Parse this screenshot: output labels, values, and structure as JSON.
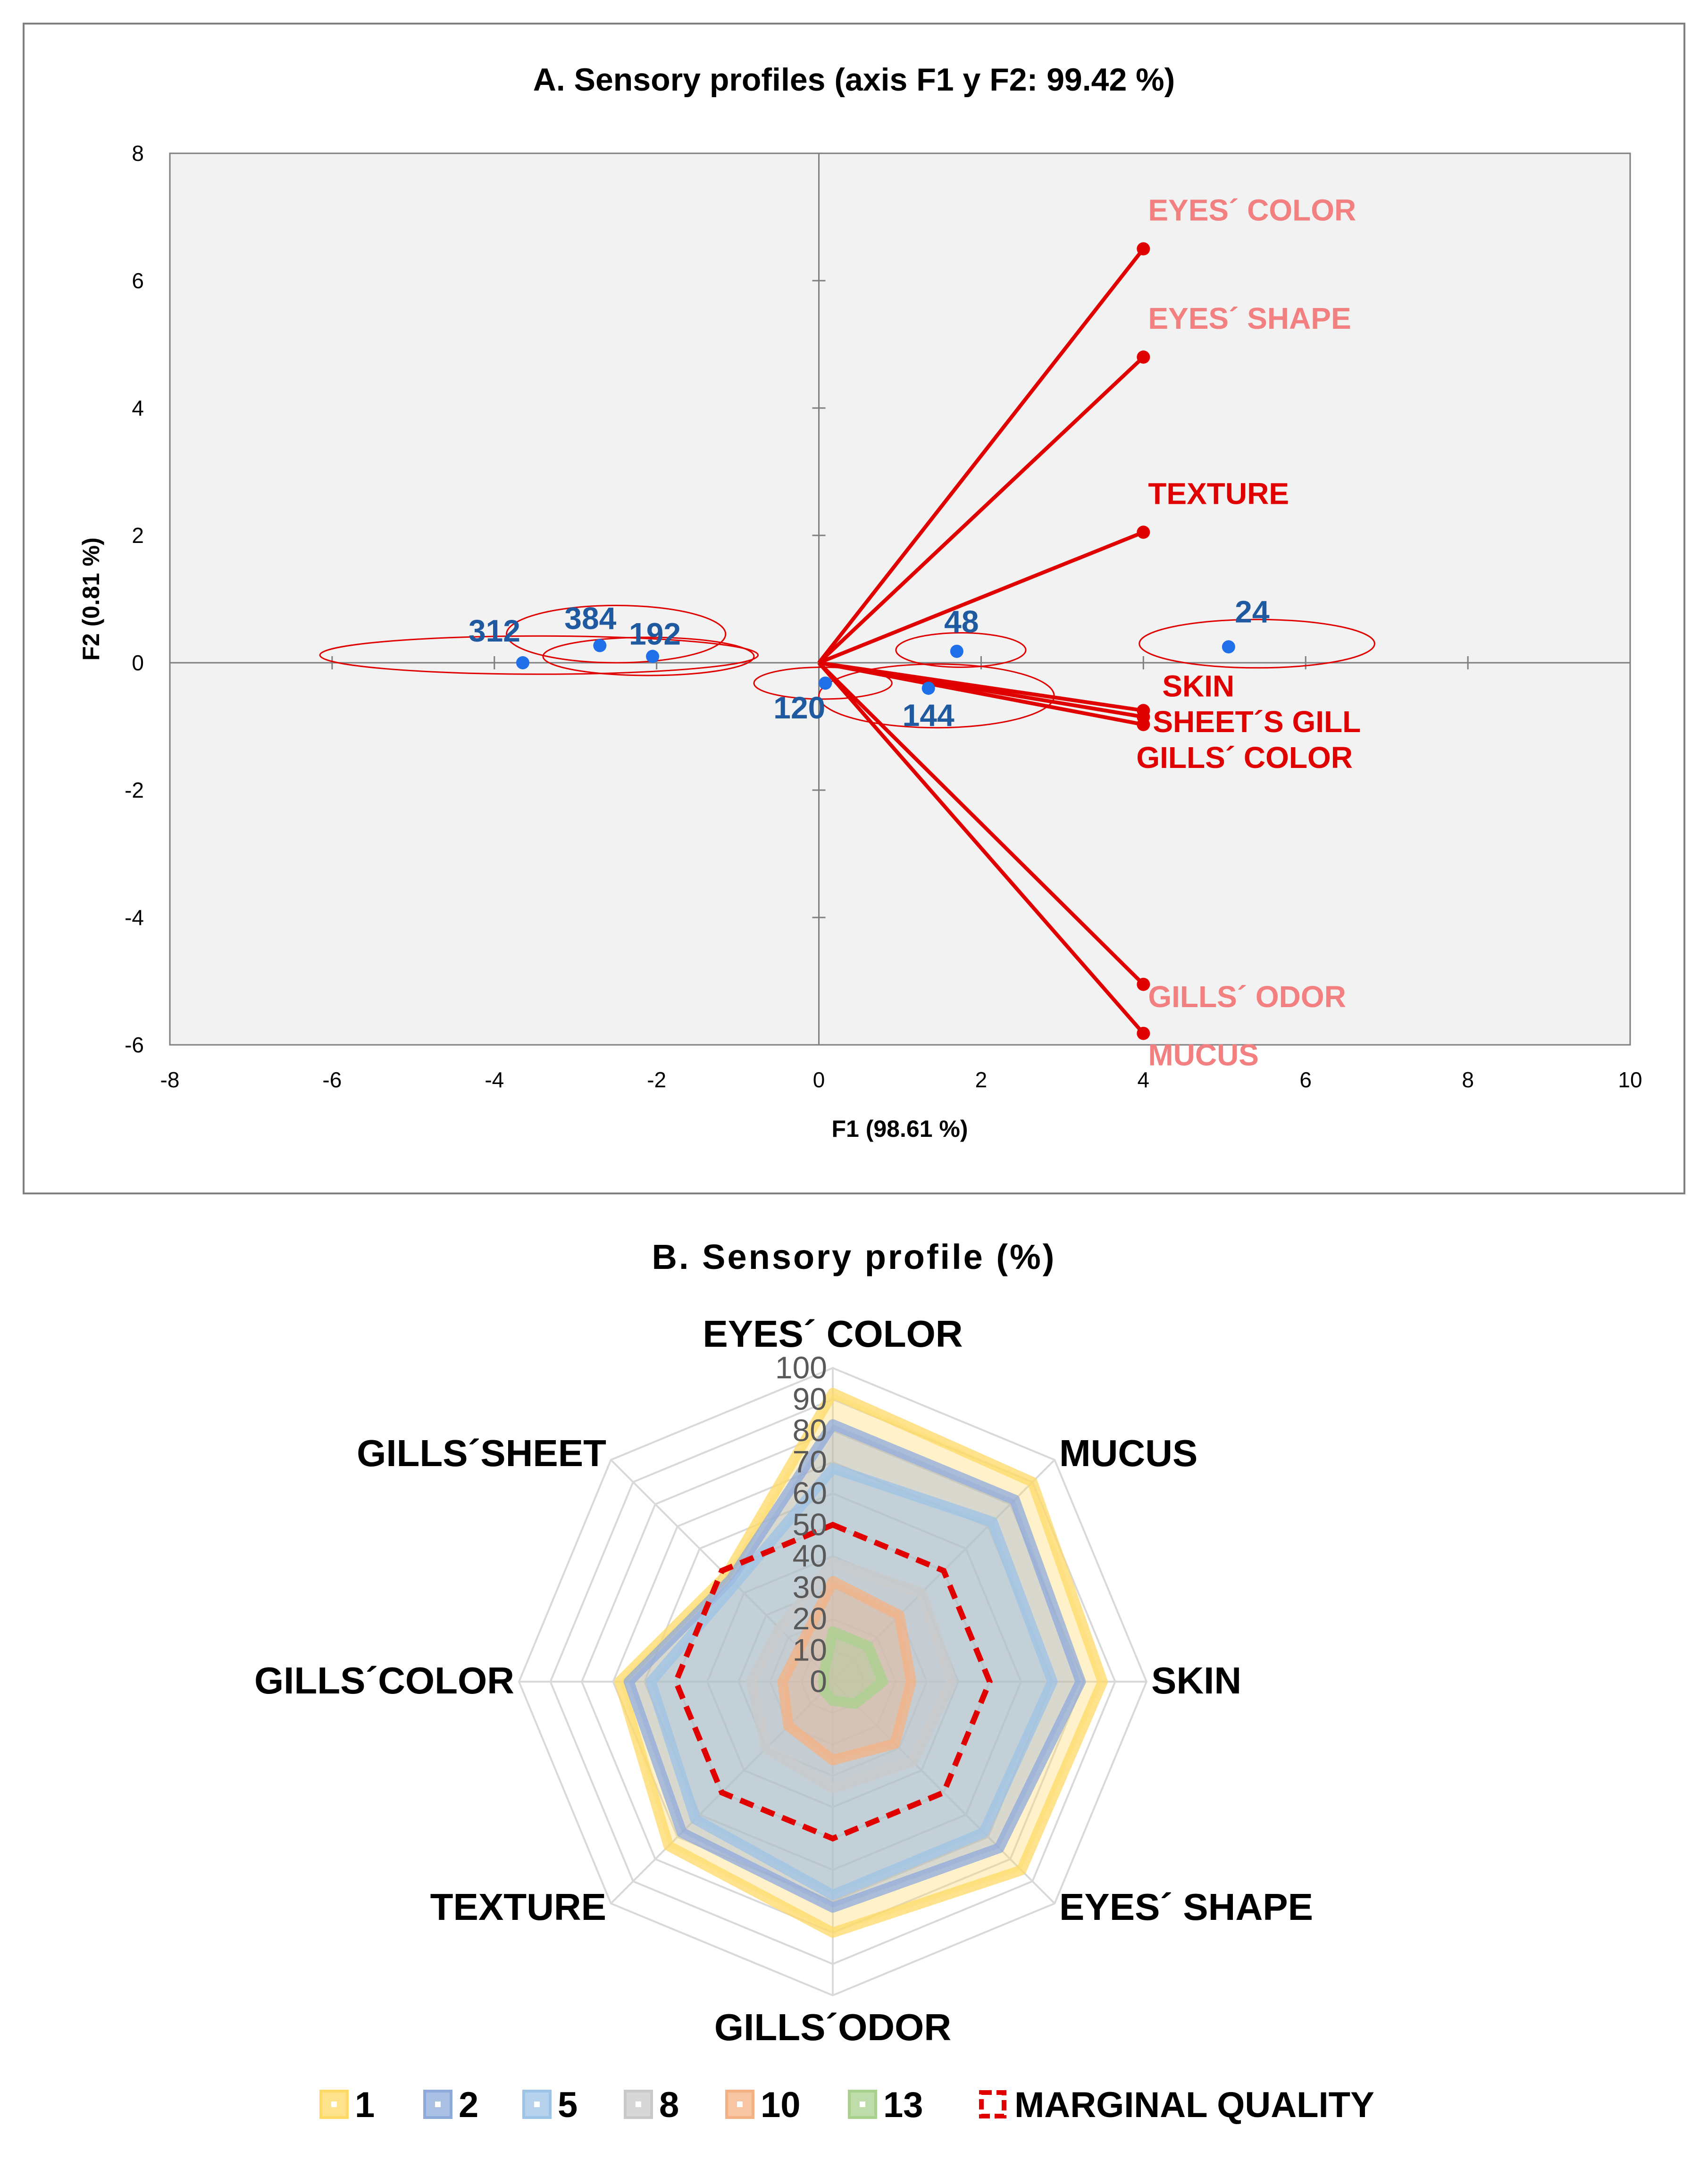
{
  "chart_data": [
    {
      "type": "scatter",
      "title": "A. Sensory profiles (axis F1 y F2: 99.42 %)",
      "xlabel": "F1 (98.61 %)",
      "ylabel": "F2 (0.81 %)",
      "xlim": [
        -8,
        10
      ],
      "ylim": [
        -6,
        8
      ],
      "xticks": [
        "-8",
        "-6",
        "-4",
        "-2",
        "0",
        "2",
        "4",
        "6",
        "8",
        "10"
      ],
      "yticks": [
        "8",
        "6",
        "4",
        "2",
        "0",
        "-2",
        "-4",
        "-6"
      ],
      "observations": [
        {
          "label": "24",
          "x": 5.05,
          "y": 0.25,
          "ellipse": {
            "rx": 1.45,
            "ry": 0.38,
            "cx": 5.4,
            "cy": 0.3
          }
        },
        {
          "label": "48",
          "x": 1.7,
          "y": 0.18,
          "ellipse": {
            "rx": 0.8,
            "ry": 0.27,
            "cx": 1.75,
            "cy": 0.2
          }
        },
        {
          "label": "120",
          "x": 0.08,
          "y": -0.32,
          "ellipse": {
            "rx": 0.85,
            "ry": 0.25,
            "cx": 0.05,
            "cy": -0.32
          }
        },
        {
          "label": "144",
          "x": 1.35,
          "y": -0.4,
          "ellipse": {
            "rx": 1.45,
            "ry": 0.5,
            "cx": 1.45,
            "cy": -0.52
          }
        },
        {
          "label": "192",
          "x": -2.05,
          "y": 0.1,
          "ellipse": {
            "rx": 1.3,
            "ry": 0.3,
            "cx": -2.1,
            "cy": 0.1
          }
        },
        {
          "label": "384",
          "x": -2.7,
          "y": 0.27,
          "ellipse": {
            "rx": 1.35,
            "ry": 0.45,
            "cx": -2.5,
            "cy": 0.45
          }
        },
        {
          "label": "312",
          "x": -3.65,
          "y": 0.0,
          "ellipse": {
            "rx": 2.7,
            "ry": 0.3,
            "cx": -3.45,
            "cy": 0.12
          }
        }
      ],
      "variables": [
        {
          "label": "EYES´ COLOR",
          "x": 4.0,
          "y": 6.5,
          "color": "#f28080"
        },
        {
          "label": "EYES´ SHAPE",
          "x": 4.0,
          "y": 4.8,
          "color": "#f28080"
        },
        {
          "label": "TEXTURE",
          "x": 4.0,
          "y": 2.05,
          "color": "#e00000"
        },
        {
          "label": "SKIN",
          "x": 4.0,
          "y": -0.75,
          "color": "#e00000"
        },
        {
          "label": "SHEET´S GILL",
          "x": 4.0,
          "y": -0.85,
          "color": "#e00000"
        },
        {
          "label": "GILLS´ COLOR",
          "x": 4.0,
          "y": -0.97,
          "color": "#e00000"
        },
        {
          "label": "GILLS´ ODOR",
          "x": 4.0,
          "y": -5.05,
          "color": "#f28080"
        },
        {
          "label": "MUCUS",
          "x": 4.0,
          "y": -5.82,
          "color": "#f28080"
        }
      ]
    },
    {
      "type": "radar",
      "title": "B. Sensory profile (%)",
      "axes": [
        "EYES´ COLOR",
        "MUCUS",
        "SKIN",
        "EYES´ SHAPE",
        "GILLS´ODOR",
        "TEXTURE",
        "GILLS´COLOR",
        "GILLS´SHEET"
      ],
      "rlim": [
        0,
        100
      ],
      "rticks": [
        "0",
        "10",
        "20",
        "30",
        "40",
        "50",
        "60",
        "70",
        "80",
        "90",
        "100"
      ],
      "series": [
        {
          "name": "1",
          "color": "#ffd966",
          "values": [
            92,
            90,
            86,
            85,
            80,
            74,
            68,
            48
          ]
        },
        {
          "name": "2",
          "color": "#8eaadb",
          "values": [
            82,
            82,
            79,
            75,
            72,
            68,
            65,
            46
          ]
        },
        {
          "name": "5",
          "color": "#9dc3e6",
          "values": [
            68,
            72,
            70,
            68,
            68,
            62,
            58,
            44
          ]
        },
        {
          "name": "8",
          "color": "#c9c9c9",
          "values": [
            38,
            40,
            38,
            36,
            34,
            30,
            26,
            24
          ]
        },
        {
          "name": "10",
          "color": "#f4b183",
          "values": [
            32,
            30,
            25,
            28,
            25,
            20,
            16,
            15
          ]
        },
        {
          "name": "13",
          "color": "#a9d18e",
          "values": [
            16,
            16,
            16,
            10,
            6,
            4,
            3,
            4
          ]
        }
      ],
      "threshold": {
        "name": "MARGINAL QUALITY",
        "color": "#e00000",
        "values": [
          50,
          50,
          50,
          50,
          50,
          50,
          50,
          50
        ]
      }
    }
  ]
}
